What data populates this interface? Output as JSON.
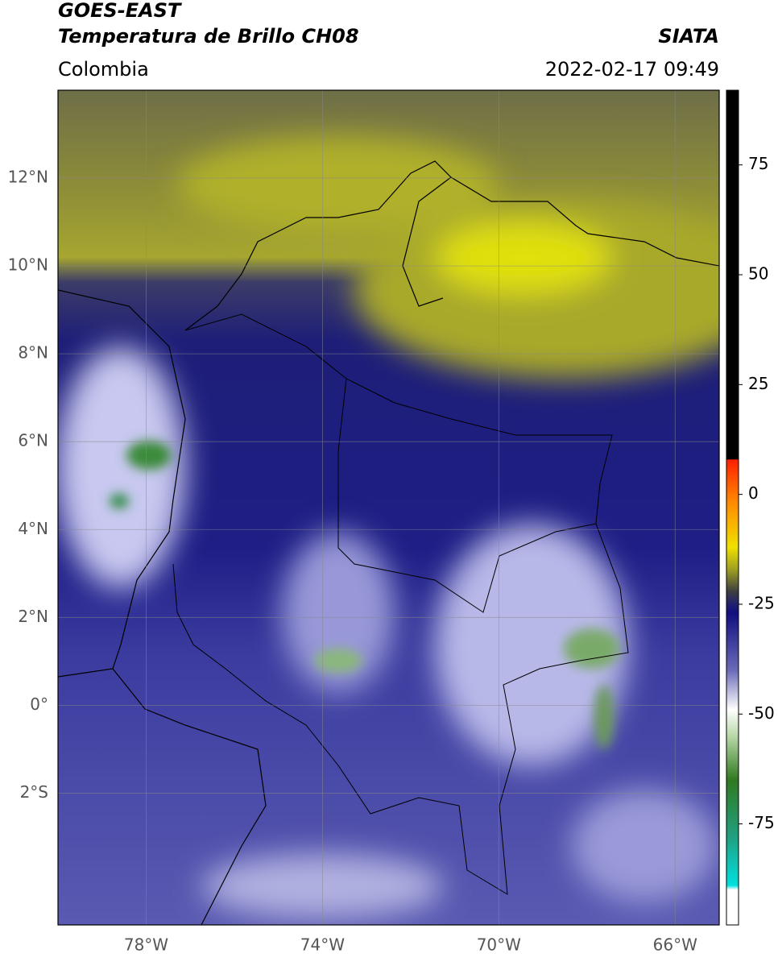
{
  "header": {
    "title": "GOES-EAST",
    "subtitle": "Temperatura de Brillo CH08",
    "source": "SIATA",
    "region": "Colombia",
    "datetime": "2022-02-17 09:49"
  },
  "map": {
    "lonlim": [
      -80,
      -65
    ],
    "latlim": [
      -5,
      14
    ],
    "lonticks": [
      {
        "value": -78,
        "label": "78°W"
      },
      {
        "value": -74,
        "label": "74°W"
      },
      {
        "value": -70,
        "label": "70°W"
      },
      {
        "value": -66,
        "label": "66°W"
      }
    ],
    "latticks": [
      {
        "value": 12,
        "label": "12°N"
      },
      {
        "value": 10,
        "label": "10°N"
      },
      {
        "value": 8,
        "label": "8°N"
      },
      {
        "value": 6,
        "label": "6°N"
      },
      {
        "value": 4,
        "label": "4°N"
      },
      {
        "value": 2,
        "label": "2°N"
      },
      {
        "value": 0,
        "label": "0°"
      },
      {
        "value": -2,
        "label": "2°S"
      }
    ]
  },
  "colorbar": {
    "range": [
      -98,
      92
    ],
    "ticks": [
      75,
      50,
      25,
      0,
      -25,
      -50,
      -75
    ],
    "stops": [
      {
        "value": 92,
        "color": "#000000"
      },
      {
        "value": 8,
        "color": "#000000"
      },
      {
        "value": 7.9,
        "color": "#ff2000"
      },
      {
        "value": -2,
        "color": "#ff8c00"
      },
      {
        "value": -12,
        "color": "#f0e000"
      },
      {
        "value": -17,
        "color": "#a0a020"
      },
      {
        "value": -22,
        "color": "#404040"
      },
      {
        "value": -25,
        "color": "#202070"
      },
      {
        "value": -27,
        "color": "#101080"
      },
      {
        "value": -40,
        "color": "#6a6ab8"
      },
      {
        "value": -49,
        "color": "#ffffff"
      },
      {
        "value": -55,
        "color": "#b8d8a8"
      },
      {
        "value": -65,
        "color": "#307a20"
      },
      {
        "value": -78,
        "color": "#20a080"
      },
      {
        "value": -89,
        "color": "#00e0e0"
      },
      {
        "value": -90,
        "color": "#ffffff"
      },
      {
        "value": -98,
        "color": "#ffffff"
      }
    ]
  }
}
